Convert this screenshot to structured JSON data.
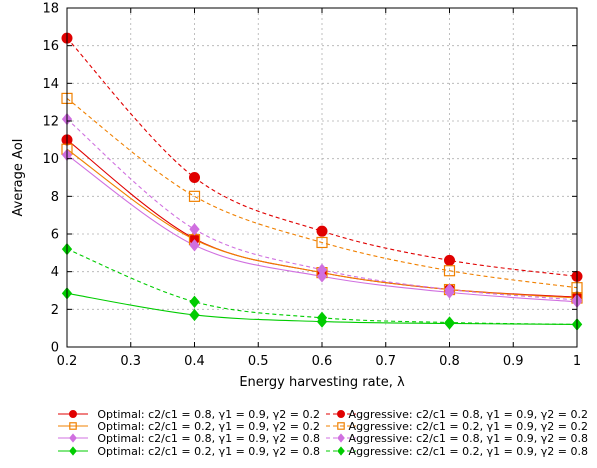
{
  "chart_data": {
    "type": "line",
    "xlabel": "Energy harvesting rate, λ",
    "ylabel": "Average AoI",
    "xlim": [
      0.2,
      1.0
    ],
    "ylim": [
      0,
      18
    ],
    "xticks": [
      "0.2",
      "0.3",
      "0.4",
      "0.5",
      "0.6",
      "0.7",
      "0.8",
      "0.9",
      "1"
    ],
    "yticks": [
      "0",
      "2",
      "4",
      "6",
      "8",
      "10",
      "12",
      "14",
      "16",
      "18"
    ],
    "grid": true,
    "legend_position": "bottom",
    "series": [
      {
        "name": "Optimal: c2/c1 = 0.8, γ1 = 0.9, γ2 = 0.2",
        "color": "#e00000",
        "line": "solid",
        "marker": "filled-circle",
        "x": [
          0.2,
          0.4,
          0.6,
          0.8,
          1.0
        ],
        "y": [
          11.0,
          5.75,
          3.95,
          3.05,
          2.65
        ]
      },
      {
        "name": "Optimal: c2/c1 = 0.2, γ1 = 0.9, γ2 = 0.2",
        "color": "#f08000",
        "line": "solid",
        "marker": "open-square",
        "x": [
          0.2,
          0.4,
          0.6,
          0.8,
          1.0
        ],
        "y": [
          10.5,
          5.7,
          3.95,
          3.05,
          2.6
        ]
      },
      {
        "name": "Optimal: c2/c1 = 0.8, γ1 = 0.9, γ2 = 0.8",
        "color": "#d070e0",
        "line": "solid",
        "marker": "diamond",
        "x": [
          0.2,
          0.4,
          0.6,
          0.8,
          1.0
        ],
        "y": [
          10.2,
          5.4,
          3.75,
          2.9,
          2.4
        ]
      },
      {
        "name": "Optimal: c2/c1 = 0.2, γ1 = 0.9, γ2 = 0.8",
        "color": "#00cc00",
        "line": "solid",
        "marker": "diamond",
        "x": [
          0.2,
          0.4,
          0.6,
          0.8,
          1.0
        ],
        "y": [
          2.85,
          1.7,
          1.35,
          1.25,
          1.2
        ]
      },
      {
        "name": "Aggressive: c2/c1 = 0.8, γ1 = 0.9, γ2 = 0.2",
        "color": "#e00000",
        "line": "dashed",
        "marker": "filled-circle",
        "x": [
          0.2,
          0.4,
          0.6,
          0.8,
          1.0
        ],
        "y": [
          16.4,
          9.0,
          6.15,
          4.6,
          3.75
        ]
      },
      {
        "name": "Aggressive: c2/c1 = 0.2, γ1 = 0.9, γ2 = 0.2",
        "color": "#f08000",
        "line": "dashed",
        "marker": "open-square",
        "x": [
          0.2,
          0.4,
          0.6,
          0.8,
          1.0
        ],
        "y": [
          13.2,
          8.0,
          5.55,
          4.05,
          3.15
        ]
      },
      {
        "name": "Aggressive: c2/c1 = 0.8, γ1 = 0.9, γ2 = 0.8",
        "color": "#d070e0",
        "line": "dashed",
        "marker": "diamond",
        "x": [
          0.2,
          0.4,
          0.6,
          0.8,
          1.0
        ],
        "y": [
          12.1,
          6.25,
          4.1,
          3.05,
          2.5
        ]
      },
      {
        "name": "Aggressive: c2/c1 = 0.2, γ1 = 0.9, γ2 = 0.8",
        "color": "#00cc00",
        "line": "dashed",
        "marker": "diamond",
        "x": [
          0.2,
          0.4,
          0.6,
          0.8,
          1.0
        ],
        "y": [
          5.2,
          2.4,
          1.55,
          1.3,
          1.2
        ]
      }
    ]
  }
}
